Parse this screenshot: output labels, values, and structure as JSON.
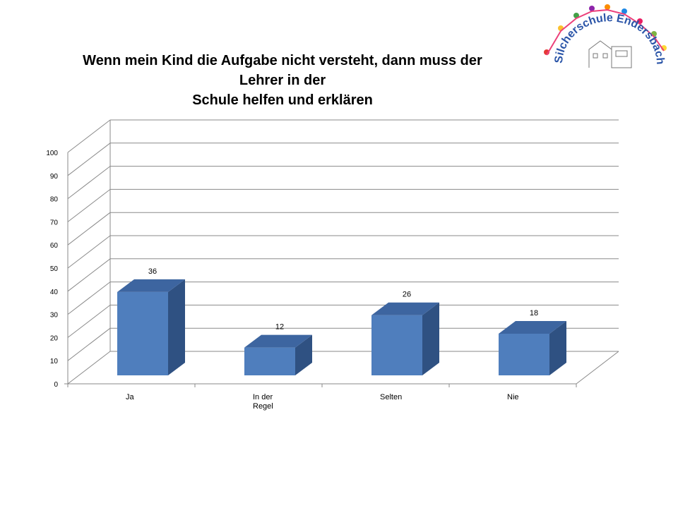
{
  "title_lines": [
    "Wenn mein Kind die Aufgabe nicht versteht, dann muss der",
    "Lehrer in der",
    "Schule helfen und erklären"
  ],
  "logo": {
    "text": "Silcherschule Endersbach"
  },
  "chart_data": {
    "type": "bar",
    "style": "3d-column",
    "categories": [
      "Ja",
      "In der Regel",
      "Selten",
      "Nie"
    ],
    "category_label_lines": [
      [
        "Ja"
      ],
      [
        "In der",
        "Regel"
      ],
      [
        "Selten"
      ],
      [
        "Nie"
      ]
    ],
    "values": [
      36,
      12,
      26,
      18
    ],
    "data_labels": [
      "36",
      "12",
      "26",
      "18"
    ],
    "ylim": [
      0,
      100
    ],
    "yticks": [
      0,
      10,
      20,
      30,
      40,
      50,
      60,
      70,
      80,
      90,
      100
    ],
    "grid": true,
    "legend": "none",
    "colors": {
      "bar_front": "#4f7ebd",
      "bar_side": "#2f5182",
      "bar_top": "#3d65a0",
      "grid": "#8a8a8a"
    }
  }
}
